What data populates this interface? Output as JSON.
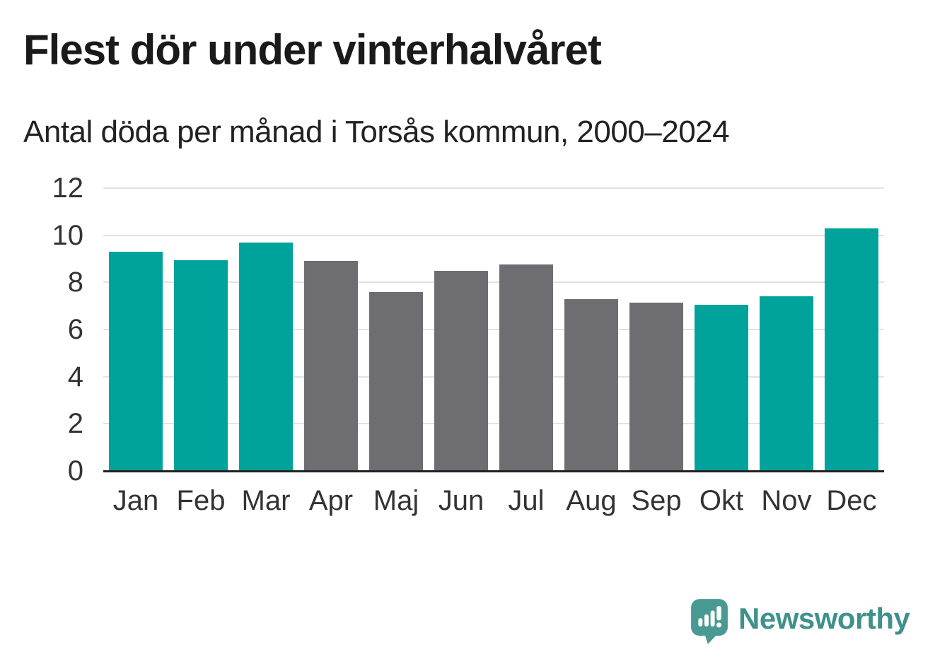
{
  "header": {
    "title": "Flest dör under vinterhalvåret",
    "subtitle": "Antal döda per månad i Torsås kommun, 2000–2024"
  },
  "chart_data": {
    "type": "bar",
    "title": "Flest dör under vinterhalvåret",
    "subtitle": "Antal döda per månad i Torsås kommun, 2000–2024",
    "categories": [
      "Jan",
      "Feb",
      "Mar",
      "Apr",
      "Maj",
      "Jun",
      "Jul",
      "Aug",
      "Sep",
      "Okt",
      "Nov",
      "Dec"
    ],
    "values": [
      9.3,
      8.95,
      9.7,
      8.9,
      7.6,
      8.5,
      8.75,
      7.3,
      7.15,
      7.05,
      7.4,
      10.3
    ],
    "highlighted": [
      true,
      true,
      true,
      false,
      false,
      false,
      false,
      false,
      false,
      true,
      true,
      true
    ],
    "xlabel": "",
    "ylabel": "",
    "ylim": [
      0,
      12
    ],
    "yticks": [
      0,
      2,
      4,
      6,
      8,
      10,
      12
    ],
    "grid": true,
    "legend": null
  },
  "palette": {
    "highlight": "#00a39b",
    "muted": "#6e6d72",
    "gridline": "#e2e2e2",
    "axis": "#222222",
    "tick_text": "#333333"
  },
  "branding": {
    "name": "Newsworthy",
    "icon": "newsworthy-speech-bubble-bars-icon",
    "icon_color": "#4a9a94",
    "text_color": "#3f918b"
  }
}
